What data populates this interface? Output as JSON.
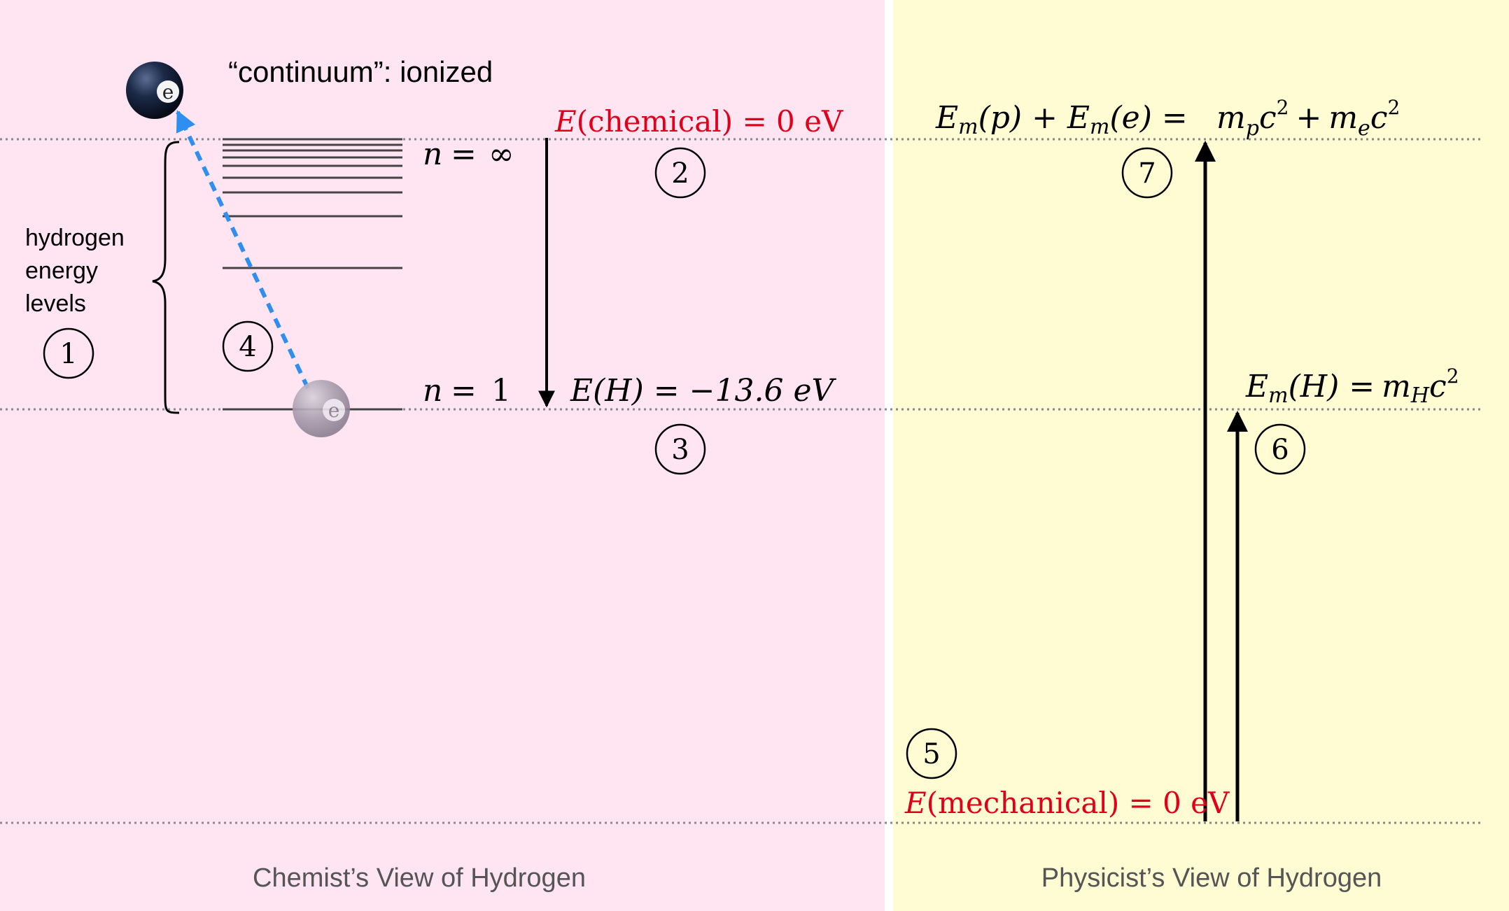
{
  "chemist": {
    "continuum_label": "“continuum”: ionized",
    "energy_levels_label": [
      "hydrogen",
      "energy",
      "levels"
    ],
    "n_inf_n": "n",
    "n_inf_eq": "=",
    "n_inf_val": "∞",
    "n1_n": "n",
    "n1_eq": "=",
    "n1_val": "1",
    "zero_label_E": "E",
    "zero_label_rest": "(chemical) = 0 eV",
    "eh_label": "E(H) = −13.6 eV",
    "electron_symbol": "e",
    "view_title": "Chemist’s View of Hydrogen"
  },
  "physicist": {
    "top_left": "E",
    "top_left_sub": "m",
    "top_p": "(p) + ",
    "top_e_sub": "m",
    "top_e": "(e) =",
    "top_mp": "m",
    "top_mp_sub": "p",
    "top_c1": "c",
    "top_sup1": "2",
    "top_plus": "+",
    "top_me": "m",
    "top_me_sub": "e",
    "top_c2": "c",
    "top_sup2": "2",
    "mh_E": "E",
    "mh_E_sub": "m",
    "mh_rest": "(H) =",
    "mh_m": "m",
    "mh_m_sub": "H",
    "mh_c": "c",
    "mh_sup": "2",
    "zero_label_E": "E",
    "zero_label_rest": "(mechanical) = 0 eV",
    "view_title": "Physicist’s View of Hydrogen"
  },
  "markers": [
    "1",
    "2",
    "3",
    "4",
    "5",
    "6",
    "7"
  ],
  "colors": {
    "chemist_bg": "#ffe4f2",
    "physicist_bg": "#fffbd2",
    "red_label": "#e1001a",
    "arrow_blue": "#2f8ff0",
    "level_line": "#444444",
    "dotted": "#888888"
  }
}
